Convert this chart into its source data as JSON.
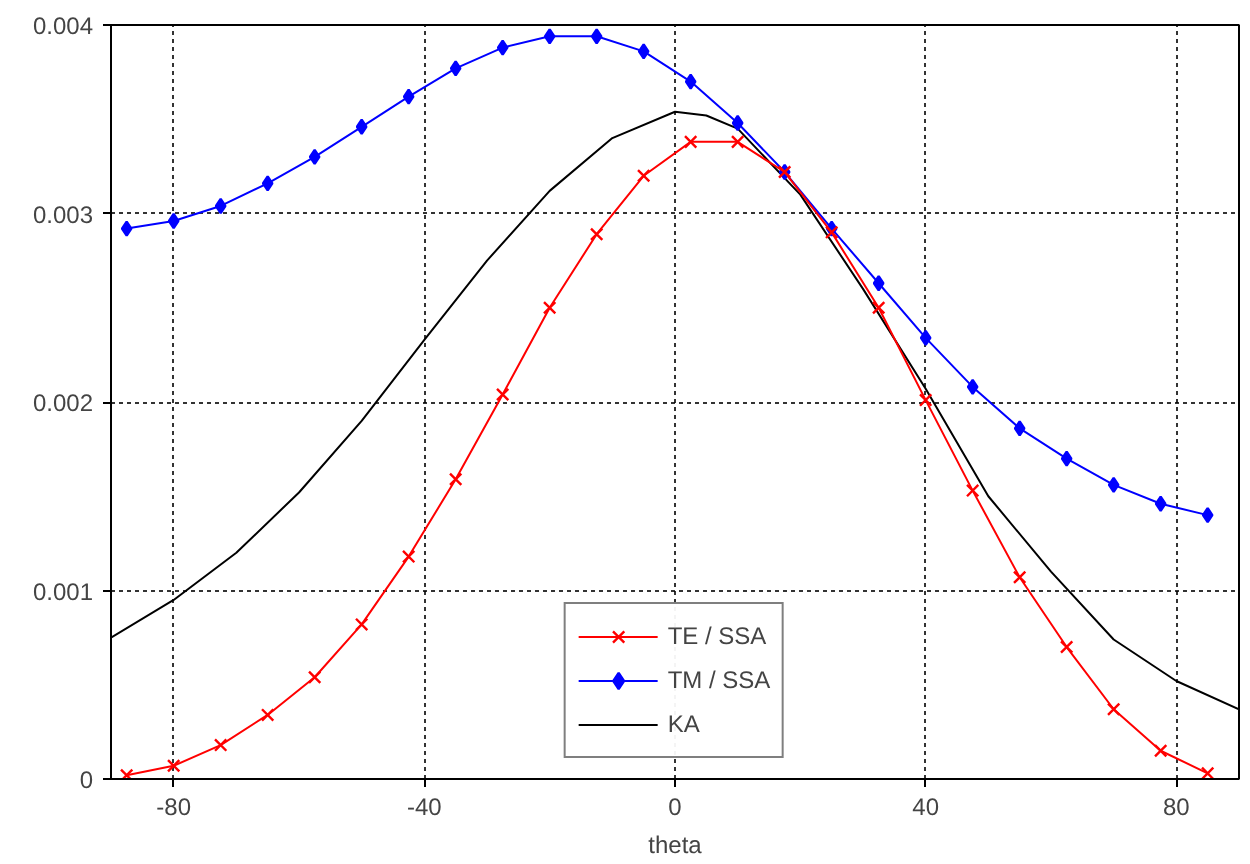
{
  "chart_data": {
    "type": "line",
    "xlabel": "theta",
    "xlim": [
      -90,
      90
    ],
    "ylim": [
      0,
      0.004
    ],
    "xticks": [
      -80,
      -40,
      0,
      40,
      80
    ],
    "yticks": [
      0,
      0.001,
      0.002,
      0.003,
      0.004
    ],
    "grid": true,
    "legend": "bottom",
    "series": [
      {
        "name": "TE / SSA",
        "color": "#ff0000",
        "marker": "cross",
        "x": [
          -87.5,
          -80,
          -72.5,
          -65,
          -57.5,
          -50,
          -42.5,
          -35,
          -27.5,
          -20,
          -12.5,
          -5,
          2.5,
          10,
          17.5,
          25,
          32.5,
          40,
          47.5,
          55,
          62.5,
          70,
          77.5,
          85
        ],
        "values": [
          2e-05,
          7e-05,
          0.00018,
          0.00034,
          0.00054,
          0.00082,
          0.00118,
          0.00159,
          0.00204,
          0.0025,
          0.00289,
          0.0032,
          0.00338,
          0.00338,
          0.00322,
          0.0029,
          0.0025,
          0.00201,
          0.00153,
          0.00107,
          0.0007,
          0.00037,
          0.00015,
          3e-05
        ]
      },
      {
        "name": "TM / SSA",
        "color": "#0000ff",
        "marker": "diamond",
        "x": [
          -87.5,
          -80,
          -72.5,
          -65,
          -57.5,
          -50,
          -42.5,
          -35,
          -27.5,
          -20,
          -12.5,
          -5,
          2.5,
          10,
          17.5,
          25,
          32.5,
          40,
          47.5,
          55,
          62.5,
          70,
          77.5,
          85
        ],
        "values": [
          0.00292,
          0.00296,
          0.00304,
          0.00316,
          0.0033,
          0.00346,
          0.00362,
          0.00377,
          0.00388,
          0.00394,
          0.00394,
          0.00386,
          0.0037,
          0.00348,
          0.00322,
          0.00292,
          0.00263,
          0.00234,
          0.00208,
          0.00186,
          0.0017,
          0.00156,
          0.00146,
          0.0014
        ]
      },
      {
        "name": "KA",
        "color": "#000000",
        "marker": "none",
        "x": [
          -90,
          -80,
          -70,
          -60,
          -50,
          -40,
          -30,
          -20,
          -10,
          0,
          5,
          10,
          20,
          30,
          40,
          50,
          60,
          70,
          80,
          90
        ],
        "values": [
          0.00075,
          0.00095,
          0.0012,
          0.00152,
          0.0019,
          0.00233,
          0.00275,
          0.00312,
          0.0034,
          0.00354,
          0.00352,
          0.00345,
          0.0031,
          0.0026,
          0.00207,
          0.0015,
          0.0011,
          0.00074,
          0.00052,
          0.00037
        ]
      }
    ]
  }
}
